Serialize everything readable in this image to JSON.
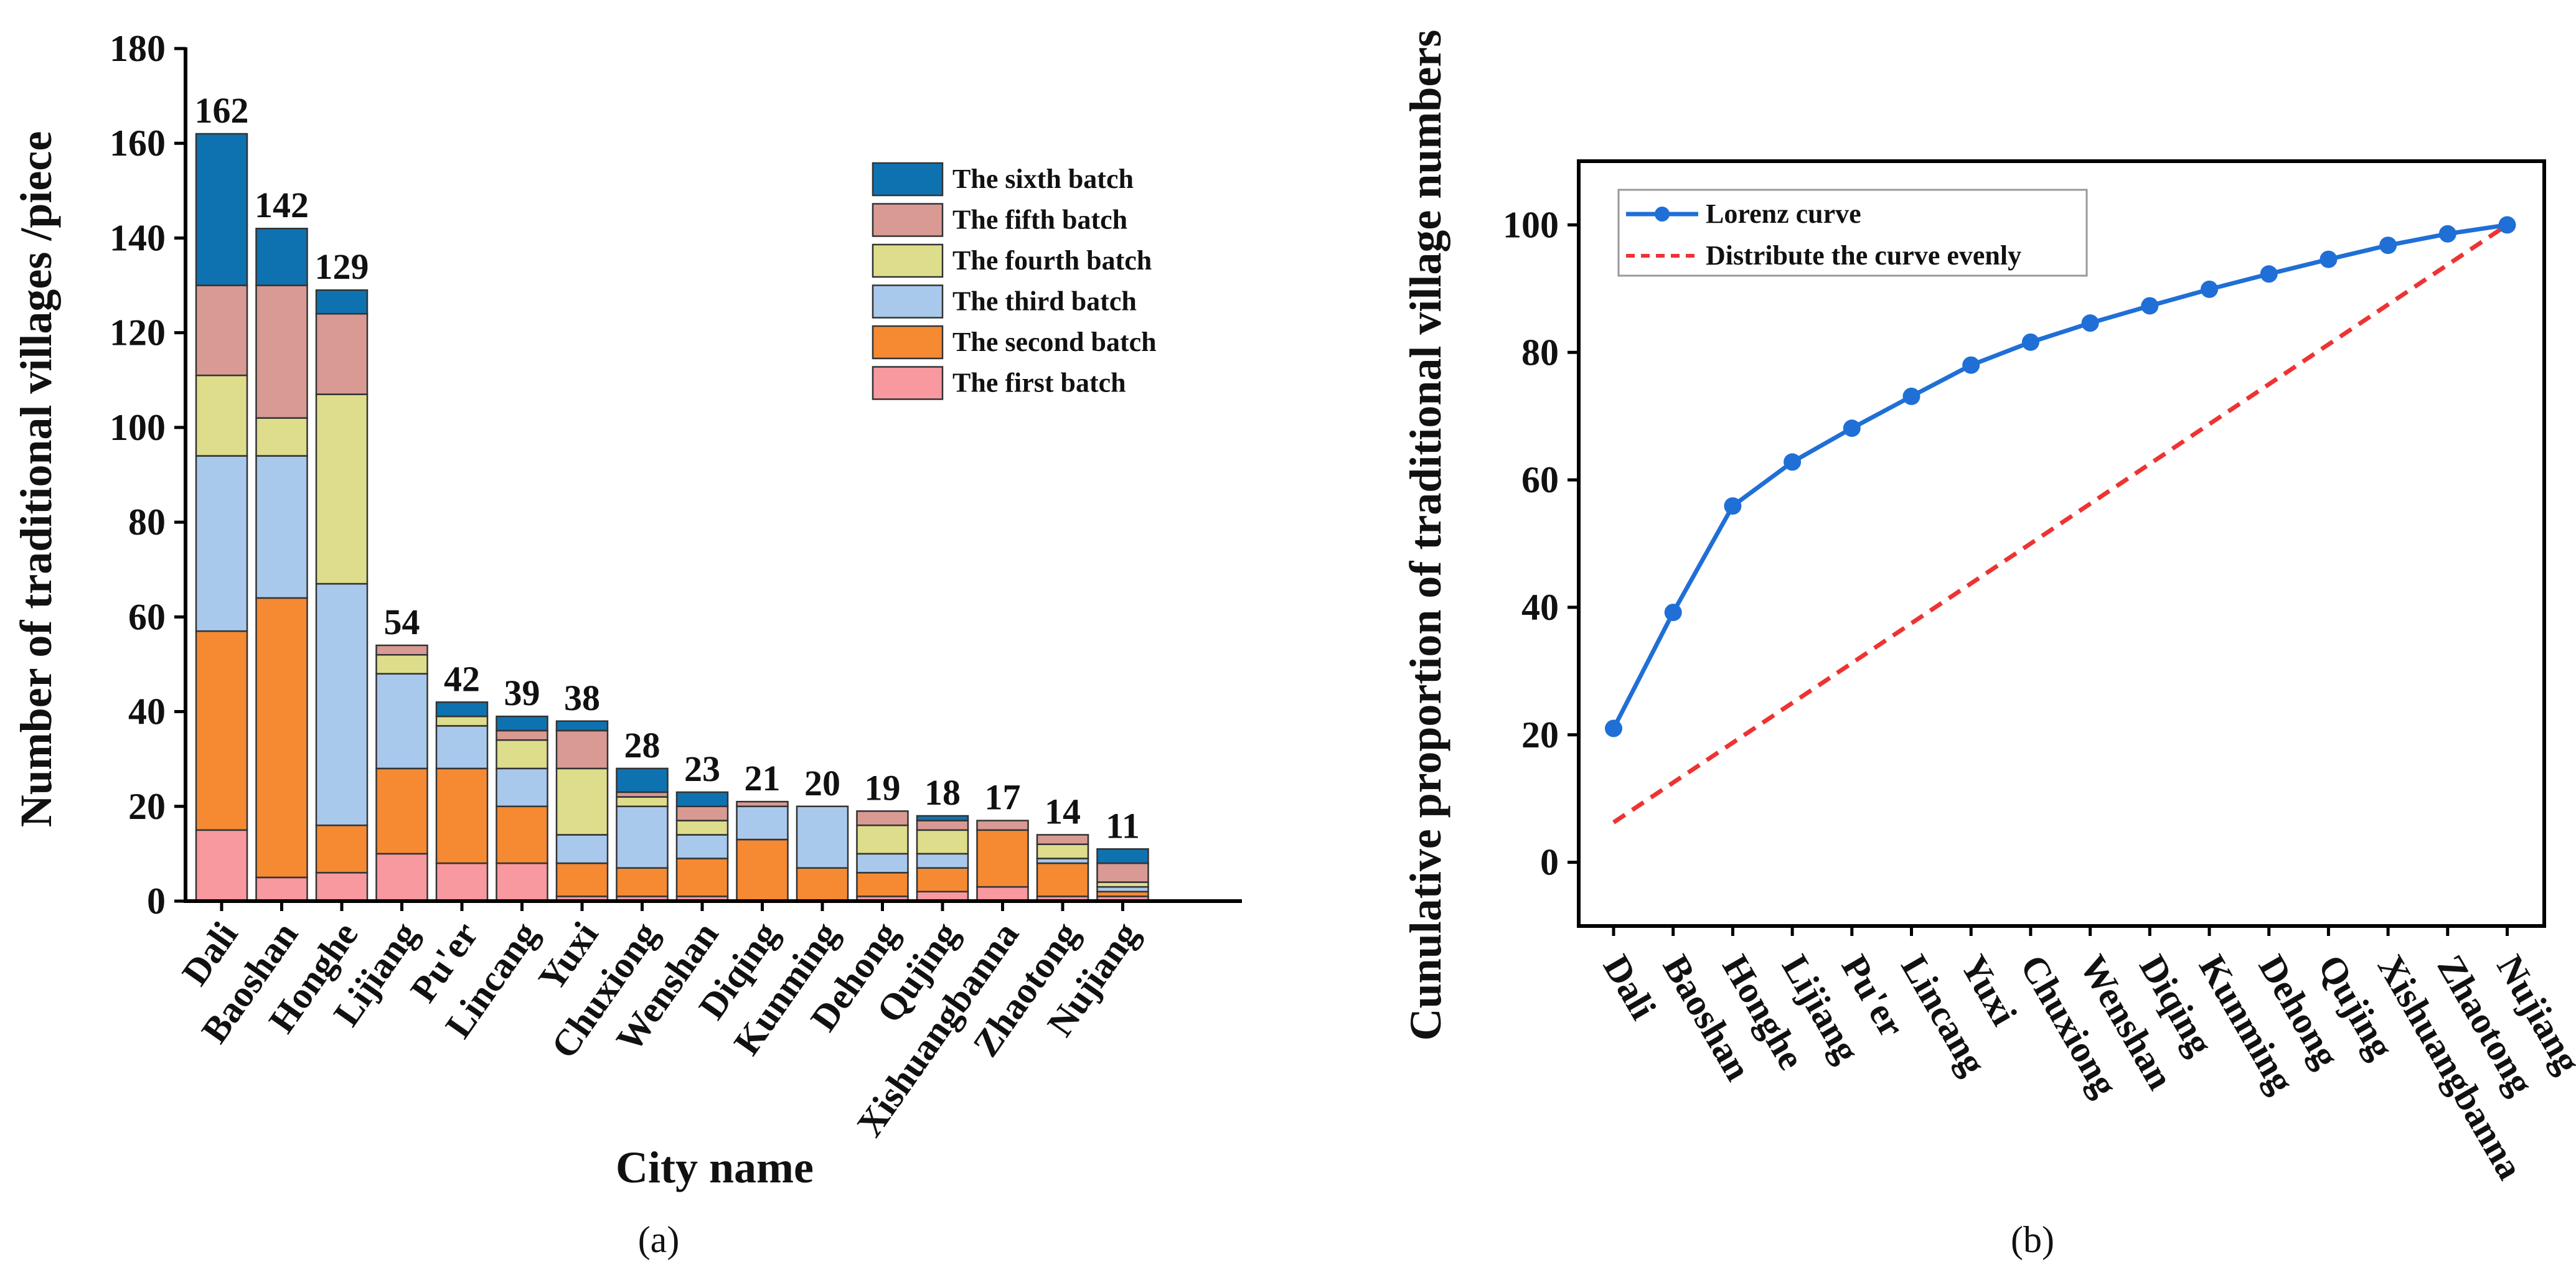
{
  "chart_data": [
    {
      "type": "bar",
      "stacked": true,
      "title": "",
      "xlabel": "City name",
      "ylabel": "Number of traditional villages /piece",
      "ylim": [
        0,
        180
      ],
      "yticks": [
        0,
        20,
        40,
        60,
        80,
        100,
        120,
        140,
        160,
        180
      ],
      "panel_label": "(a)",
      "categories": [
        "Dali",
        "Baoshan",
        "Honghe",
        "Lijiang",
        "Pu'er",
        "Lincang",
        "Yuxi",
        "Chuxiong",
        "Wenshan",
        "Diqing",
        "Kunming",
        "Dehong",
        "Qujing",
        "Xishuangbanna",
        "Zhaotong",
        "Nujiang"
      ],
      "totals": [
        162,
        142,
        129,
        54,
        42,
        39,
        38,
        28,
        23,
        21,
        20,
        19,
        18,
        17,
        14,
        11
      ],
      "legend_position": "top-right",
      "series": [
        {
          "name": "The first batch",
          "color": "#f7999f",
          "values": [
            15,
            5,
            6,
            10,
            8,
            8,
            1,
            1,
            1,
            0,
            0,
            1,
            2,
            3,
            1,
            1
          ]
        },
        {
          "name": "The second batch",
          "color": "#f58a33",
          "values": [
            42,
            59,
            10,
            18,
            20,
            12,
            7,
            6,
            8,
            13,
            7,
            5,
            5,
            12,
            7,
            1
          ]
        },
        {
          "name": "The third batch",
          "color": "#a9c9ec",
          "values": [
            37,
            30,
            51,
            20,
            9,
            8,
            6,
            13,
            5,
            7,
            13,
            4,
            3,
            0,
            1,
            1
          ]
        },
        {
          "name": "The fourth batch",
          "color": "#dddd8c",
          "values": [
            17,
            8,
            40,
            4,
            2,
            6,
            14,
            2,
            3,
            0,
            0,
            6,
            5,
            0,
            3,
            1
          ]
        },
        {
          "name": "The fifth batch",
          "color": "#d99a94",
          "values": [
            19,
            28,
            17,
            2,
            0,
            2,
            8,
            1,
            3,
            1,
            0,
            3,
            2,
            2,
            2,
            4
          ]
        },
        {
          "name": "The sixth batch",
          "color": "#0f72b0",
          "values": [
            32,
            12,
            5,
            0,
            3,
            3,
            2,
            5,
            3,
            0,
            0,
            0,
            1,
            0,
            0,
            3
          ]
        }
      ]
    },
    {
      "type": "line",
      "title": "",
      "xlabel": "",
      "ylabel": "Cunulative proportion of traditional village numbers",
      "ylim": [
        -10,
        110
      ],
      "yticks": [
        0,
        20,
        40,
        60,
        80,
        100
      ],
      "panel_label": "(b)",
      "categories": [
        "Dali",
        "Baoshan",
        "Honghe",
        "Lijiang",
        "Pu'er",
        "Lincang",
        "Yuxi",
        "Chuxiong",
        "Wenshan",
        "Diqing",
        "Kunming",
        "Dehong",
        "Qujing",
        "Xishuangbanna",
        "Zhaotong",
        "Nujiang"
      ],
      "legend_position": "top-left",
      "series": [
        {
          "name": "Lorenz curve",
          "color": "#1f6fd6",
          "style": "solid-markers",
          "values": [
            21,
            39.2,
            55.9,
            62.8,
            68.1,
            73.1,
            78,
            81.6,
            84.6,
            87.3,
            89.9,
            92.3,
            94.6,
            96.8,
            98.6,
            100
          ]
        },
        {
          "name": "Distribute the curve evenly",
          "color": "#ee3333",
          "style": "dashed",
          "values": [
            6.25,
            12.5,
            18.75,
            25,
            31.25,
            37.5,
            43.75,
            50,
            56.25,
            62.5,
            68.75,
            75,
            81.25,
            87.5,
            93.75,
            100
          ]
        }
      ]
    }
  ]
}
